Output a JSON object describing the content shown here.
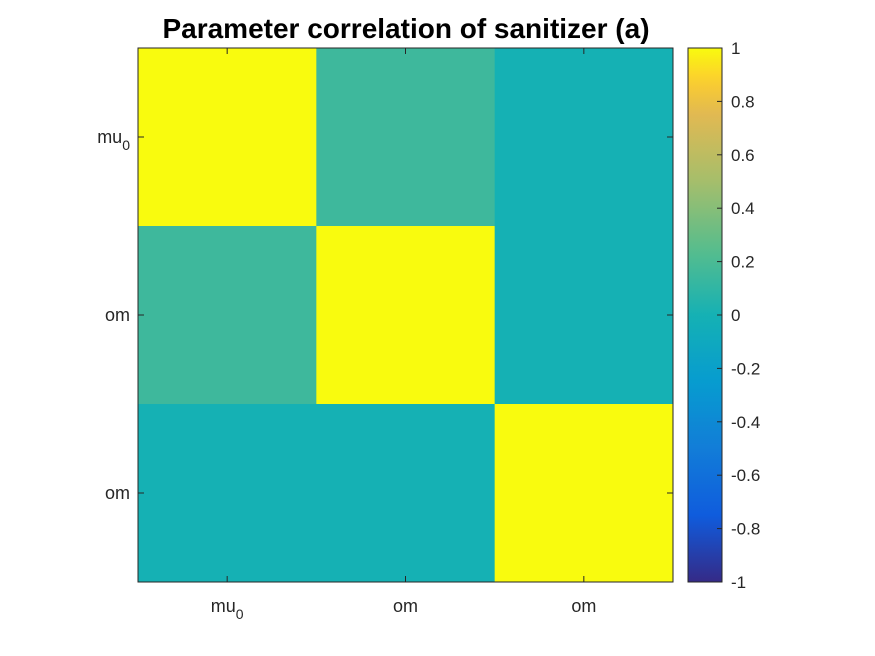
{
  "chart_data": {
    "type": "heatmap",
    "title": "Parameter correlation of sanitizer (a)",
    "row_labels": [
      {
        "base": "mu",
        "sub": "0"
      },
      {
        "base": "om",
        "sub": ""
      },
      {
        "base": "om",
        "sub": ""
      }
    ],
    "col_labels": [
      {
        "base": "mu",
        "sub": "0"
      },
      {
        "base": "om",
        "sub": ""
      },
      {
        "base": "om",
        "sub": ""
      }
    ],
    "values": [
      [
        1.0,
        0.15,
        0.0
      ],
      [
        0.15,
        1.0,
        0.0
      ],
      [
        0.0,
        0.0,
        1.0
      ]
    ],
    "colorbar": {
      "range": [
        -1,
        1
      ],
      "ticks": [
        "1",
        "0.8",
        "0.6",
        "0.4",
        "0.2",
        "0",
        "-0.2",
        "-0.4",
        "-0.6",
        "-0.8",
        "-1"
      ],
      "colormap": "parula"
    },
    "grid": false
  }
}
